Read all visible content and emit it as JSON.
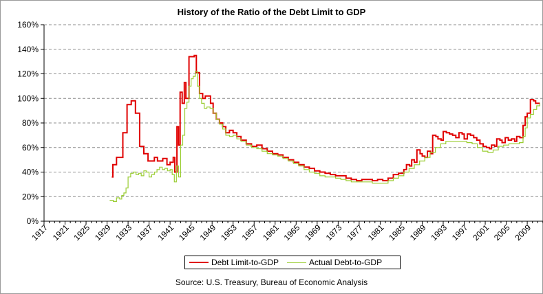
{
  "chart_data": {
    "type": "line",
    "title": "History of the Ratio of the Debt Limit to GDP",
    "source": "Source: U.S. Treasury, Bureau of Economic Analysis",
    "xlabel": "",
    "ylabel": "",
    "ylim": [
      0,
      160
    ],
    "xlim": [
      1917,
      2012
    ],
    "x_ticks": [
      "1917",
      "1921",
      "1925",
      "1929",
      "1933",
      "1937",
      "1941",
      "1945",
      "1949",
      "1953",
      "1957",
      "1961",
      "1965",
      "1969",
      "1973",
      "1977",
      "1981",
      "1985",
      "1989",
      "1993",
      "1997",
      "2001",
      "2005",
      "2009"
    ],
    "y_ticks": [
      "0%",
      "20%",
      "40%",
      "60%",
      "80%",
      "100%",
      "120%",
      "140%",
      "160%"
    ],
    "grid": "horizontal dashed",
    "legend_position": "bottom",
    "series": [
      {
        "name": "Debt Limit-to-GDP",
        "color": "#e00000",
        "step": true,
        "points": [
          [
            1929.9,
            36
          ],
          [
            1930.1,
            46
          ],
          [
            1930.8,
            52
          ],
          [
            1932.0,
            72
          ],
          [
            1932.8,
            95
          ],
          [
            1933.6,
            98
          ],
          [
            1934.4,
            88
          ],
          [
            1935.2,
            61
          ],
          [
            1936.0,
            55
          ],
          [
            1936.8,
            49
          ],
          [
            1938.0,
            52
          ],
          [
            1938.6,
            49
          ],
          [
            1939.6,
            51
          ],
          [
            1940.4,
            46
          ],
          [
            1941.0,
            48
          ],
          [
            1941.6,
            52
          ],
          [
            1941.9,
            40
          ],
          [
            1942.3,
            77
          ],
          [
            1942.6,
            62
          ],
          [
            1942.9,
            105
          ],
          [
            1943.3,
            96
          ],
          [
            1943.7,
            113
          ],
          [
            1944.0,
            100
          ],
          [
            1944.6,
            134
          ],
          [
            1945.6,
            135
          ],
          [
            1946.0,
            121
          ],
          [
            1946.6,
            104
          ],
          [
            1947.2,
            100
          ],
          [
            1947.7,
            102
          ],
          [
            1948.2,
            102
          ],
          [
            1948.7,
            96
          ],
          [
            1949.2,
            88
          ],
          [
            1949.8,
            83
          ],
          [
            1950.4,
            80
          ],
          [
            1951.0,
            77
          ],
          [
            1951.6,
            72
          ],
          [
            1952.3,
            74
          ],
          [
            1953.0,
            72
          ],
          [
            1953.7,
            69
          ],
          [
            1954.5,
            66
          ],
          [
            1955.5,
            63
          ],
          [
            1956.5,
            61
          ],
          [
            1957.5,
            62
          ],
          [
            1958.5,
            59
          ],
          [
            1959.5,
            57
          ],
          [
            1960.5,
            55
          ],
          [
            1961.5,
            54
          ],
          [
            1962.5,
            52
          ],
          [
            1963.5,
            50
          ],
          [
            1964.5,
            48
          ],
          [
            1965.5,
            46
          ],
          [
            1966.5,
            44
          ],
          [
            1967.5,
            43
          ],
          [
            1968.5,
            41
          ],
          [
            1969.5,
            40
          ],
          [
            1970.5,
            39
          ],
          [
            1971.5,
            38
          ],
          [
            1972.5,
            37
          ],
          [
            1973.5,
            37
          ],
          [
            1974.5,
            35
          ],
          [
            1975.5,
            34
          ],
          [
            1976.5,
            33
          ],
          [
            1977.5,
            34
          ],
          [
            1978.5,
            34
          ],
          [
            1979.5,
            33
          ],
          [
            1980.5,
            34
          ],
          [
            1981.5,
            33
          ],
          [
            1982.5,
            35
          ],
          [
            1983.5,
            38
          ],
          [
            1984.5,
            39
          ],
          [
            1985.5,
            42
          ],
          [
            1986.0,
            46
          ],
          [
            1986.6,
            45
          ],
          [
            1987.0,
            50
          ],
          [
            1987.5,
            48
          ],
          [
            1988.0,
            58
          ],
          [
            1988.6,
            55
          ],
          [
            1989.0,
            53
          ],
          [
            1989.5,
            52
          ],
          [
            1990.0,
            57
          ],
          [
            1990.6,
            55
          ],
          [
            1991.0,
            70
          ],
          [
            1991.6,
            69
          ],
          [
            1992.0,
            67
          ],
          [
            1992.6,
            66
          ],
          [
            1993.0,
            73
          ],
          [
            1993.6,
            72
          ],
          [
            1994.2,
            71
          ],
          [
            1994.8,
            70
          ],
          [
            1995.4,
            68
          ],
          [
            1996.0,
            72
          ],
          [
            1996.6,
            71
          ],
          [
            1997.0,
            67
          ],
          [
            1997.6,
            71
          ],
          [
            1998.2,
            70
          ],
          [
            1998.8,
            68
          ],
          [
            1999.4,
            66
          ],
          [
            2000.0,
            63
          ],
          [
            2000.6,
            61
          ],
          [
            2001.2,
            60
          ],
          [
            2001.8,
            59
          ],
          [
            2002.2,
            62
          ],
          [
            2002.8,
            61
          ],
          [
            2003.2,
            67
          ],
          [
            2003.8,
            66
          ],
          [
            2004.2,
            64
          ],
          [
            2004.8,
            68
          ],
          [
            2005.4,
            66
          ],
          [
            2006.0,
            67
          ],
          [
            2006.6,
            65
          ],
          [
            2007.0,
            69
          ],
          [
            2007.6,
            68
          ],
          [
            2008.2,
            78
          ],
          [
            2008.6,
            85
          ],
          [
            2009.0,
            88
          ],
          [
            2009.6,
            99
          ],
          [
            2010.2,
            98
          ],
          [
            2010.6,
            96
          ],
          [
            2011.4,
            96
          ]
        ]
      },
      {
        "name": "Actual Debt-to-GDP",
        "color": "#9acd32",
        "step": true,
        "points": [
          [
            1929.5,
            17
          ],
          [
            1930.2,
            16
          ],
          [
            1930.8,
            19
          ],
          [
            1931.4,
            18
          ],
          [
            1931.8,
            21
          ],
          [
            1932.2,
            23
          ],
          [
            1932.6,
            27
          ],
          [
            1933.0,
            36
          ],
          [
            1933.5,
            39
          ],
          [
            1934.0,
            40
          ],
          [
            1934.5,
            38
          ],
          [
            1935.0,
            39
          ],
          [
            1935.5,
            37
          ],
          [
            1936.0,
            41
          ],
          [
            1936.5,
            40
          ],
          [
            1937.0,
            36
          ],
          [
            1937.5,
            38
          ],
          [
            1938.0,
            40
          ],
          [
            1938.5,
            42
          ],
          [
            1939.0,
            44
          ],
          [
            1939.5,
            42
          ],
          [
            1940.0,
            43
          ],
          [
            1940.5,
            41
          ],
          [
            1941.0,
            42
          ],
          [
            1941.4,
            38
          ],
          [
            1941.8,
            32
          ],
          [
            1942.2,
            45
          ],
          [
            1942.6,
            36
          ],
          [
            1943.0,
            62
          ],
          [
            1943.4,
            70
          ],
          [
            1943.8,
            92
          ],
          [
            1944.2,
            97
          ],
          [
            1944.6,
            110
          ],
          [
            1945.0,
            116
          ],
          [
            1945.4,
            118
          ],
          [
            1945.8,
            122
          ],
          [
            1946.2,
            110
          ],
          [
            1946.6,
            100
          ],
          [
            1947.0,
            96
          ],
          [
            1947.5,
            92
          ],
          [
            1948.0,
            93
          ],
          [
            1948.6,
            92
          ],
          [
            1949.2,
            88
          ],
          [
            1949.8,
            83
          ],
          [
            1950.4,
            79
          ],
          [
            1951.0,
            75
          ],
          [
            1951.6,
            70
          ],
          [
            1952.3,
            69
          ],
          [
            1953.0,
            70
          ],
          [
            1953.7,
            67
          ],
          [
            1954.5,
            65
          ],
          [
            1955.5,
            62
          ],
          [
            1956.5,
            60
          ],
          [
            1957.5,
            59
          ],
          [
            1958.5,
            57
          ],
          [
            1959.5,
            55
          ],
          [
            1960.5,
            54
          ],
          [
            1961.5,
            53
          ],
          [
            1962.5,
            51
          ],
          [
            1963.5,
            49
          ],
          [
            1964.5,
            47
          ],
          [
            1965.5,
            45
          ],
          [
            1966.5,
            42
          ],
          [
            1967.5,
            40
          ],
          [
            1968.5,
            39
          ],
          [
            1969.5,
            37
          ],
          [
            1970.5,
            36
          ],
          [
            1971.5,
            36
          ],
          [
            1972.5,
            35
          ],
          [
            1973.5,
            34
          ],
          [
            1974.5,
            33
          ],
          [
            1975.5,
            32
          ],
          [
            1976.5,
            32
          ],
          [
            1977.5,
            32
          ],
          [
            1978.5,
            32
          ],
          [
            1979.5,
            31
          ],
          [
            1980.5,
            31
          ],
          [
            1981.5,
            31
          ],
          [
            1982.5,
            33
          ],
          [
            1983.5,
            35
          ],
          [
            1984.5,
            37
          ],
          [
            1985.5,
            40
          ],
          [
            1986.5,
            43
          ],
          [
            1987.5,
            46
          ],
          [
            1988.5,
            49
          ],
          [
            1989.5,
            52
          ],
          [
            1990.5,
            56
          ],
          [
            1991.5,
            60
          ],
          [
            1992.5,
            63
          ],
          [
            1993.5,
            65
          ],
          [
            1994.5,
            65
          ],
          [
            1995.5,
            65
          ],
          [
            1996.5,
            65
          ],
          [
            1997.5,
            64
          ],
          [
            1998.5,
            63
          ],
          [
            1999.5,
            60
          ],
          [
            2000.5,
            57
          ],
          [
            2001.5,
            56
          ],
          [
            2002.5,
            58
          ],
          [
            2003.5,
            61
          ],
          [
            2004.5,
            62
          ],
          [
            2005.5,
            63
          ],
          [
            2006.5,
            63
          ],
          [
            2007.5,
            64
          ],
          [
            2008.2,
            69
          ],
          [
            2008.6,
            76
          ],
          [
            2009.0,
            84
          ],
          [
            2009.6,
            87
          ],
          [
            2010.2,
            91
          ],
          [
            2010.8,
            94
          ],
          [
            2011.4,
            96
          ]
        ]
      }
    ]
  }
}
